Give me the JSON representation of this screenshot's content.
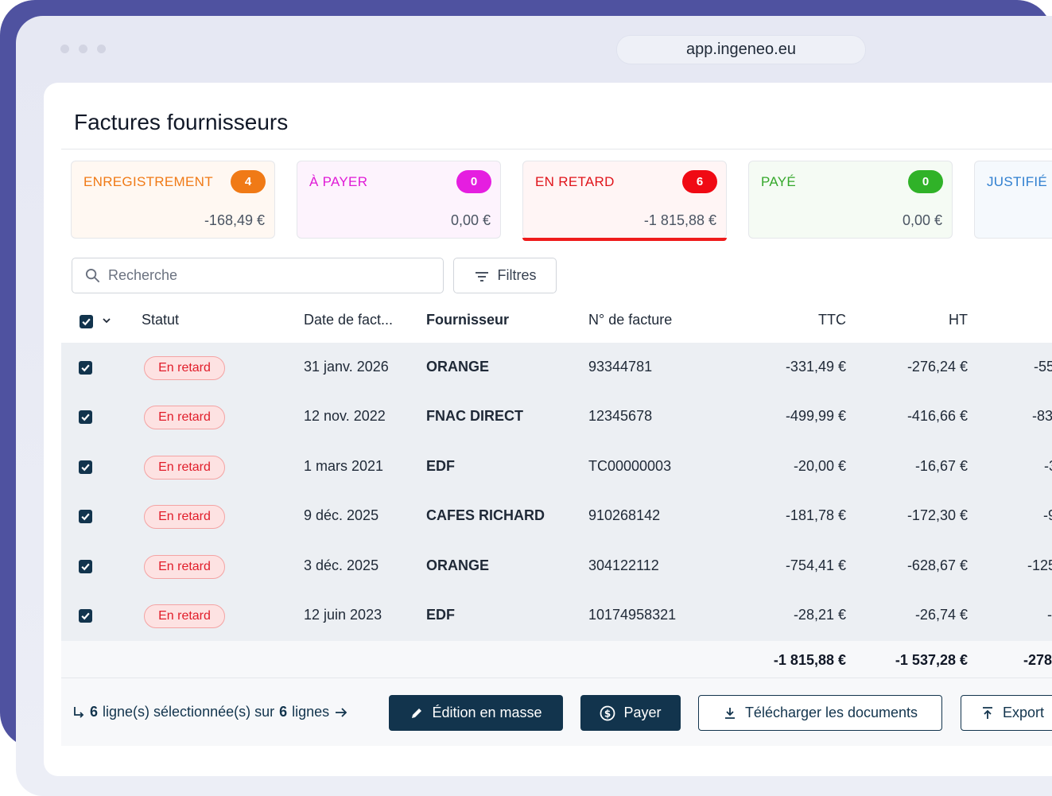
{
  "browser": {
    "url": "app.ingeneo.eu"
  },
  "page": {
    "title": "Factures fournisseurs"
  },
  "status_cards": [
    {
      "label": "ENREGISTREMENT",
      "count": "4",
      "amount": "-168,49 €",
      "color": "#f07a16",
      "badge_color": "#f07a16",
      "bg": "#fff8f2"
    },
    {
      "label": "À PAYER",
      "count": "0",
      "amount": "0,00 €",
      "color": "#e01bd6",
      "badge_color": "#e51ee0",
      "bg": "#fdf3fd"
    },
    {
      "label": "EN RETARD",
      "count": "6",
      "amount": "-1 815,88 €",
      "color": "#e0141b",
      "badge_color": "#f00a14",
      "bg": "#fff5f5"
    },
    {
      "label": "PAYÉ",
      "count": "0",
      "amount": "0,00 €",
      "color": "#35a82b",
      "badge_color": "#30b228",
      "bg": "#f5fbf4"
    },
    {
      "label": "JUSTIFIÉ",
      "count": "",
      "amount": "",
      "color": "#2f7fd0",
      "badge_color": "#2f7fd0",
      "bg": "#f5f9fd"
    }
  ],
  "search": {
    "placeholder": "Recherche"
  },
  "filters": {
    "label": "Filtres"
  },
  "table": {
    "headers": {
      "status": "Statut",
      "date": "Date de fact...",
      "supplier": "Fournisseur",
      "invoice_no": "N° de facture",
      "ttc": "TTC",
      "ht": "HT"
    },
    "rows": [
      {
        "status": "En retard",
        "date": "31 janv. 2026",
        "supplier": "ORANGE",
        "invoice_no": "93344781",
        "ttc": "-331,49 €",
        "ht": "-276,24 €",
        "extra": "-55"
      },
      {
        "status": "En retard",
        "date": "12 nov. 2022",
        "supplier": "FNAC DIRECT",
        "invoice_no": "12345678",
        "ttc": "-499,99 €",
        "ht": "-416,66 €",
        "extra": "-83"
      },
      {
        "status": "En retard",
        "date": "1 mars 2021",
        "supplier": "EDF",
        "invoice_no": "TC00000003",
        "ttc": "-20,00 €",
        "ht": "-16,67 €",
        "extra": "-3"
      },
      {
        "status": "En retard",
        "date": "9 déc. 2025",
        "supplier": "CAFES RICHARD",
        "invoice_no": "910268142",
        "ttc": "-181,78 €",
        "ht": "-172,30 €",
        "extra": "-9"
      },
      {
        "status": "En retard",
        "date": "3 déc. 2025",
        "supplier": "ORANGE",
        "invoice_no": "304122112",
        "ttc": "-754,41 €",
        "ht": "-628,67 €",
        "extra": "-125"
      },
      {
        "status": "En retard",
        "date": "12 juin 2023",
        "supplier": "EDF",
        "invoice_no": "10174958321",
        "ttc": "-28,21 €",
        "ht": "-26,74 €",
        "extra": "-"
      }
    ],
    "totals": {
      "ttc": "-1 815,88 €",
      "ht": "-1 537,28 €",
      "extra": "-278"
    }
  },
  "footer": {
    "selected_count": "6",
    "selected_text": "ligne(s) sélectionnée(s) sur",
    "total_count": "6",
    "total_text": "lignes",
    "buttons": {
      "bulk_edit": "Édition en masse",
      "pay": "Payer",
      "download": "Télécharger les documents",
      "export": "Export"
    }
  },
  "colors": {
    "primary": "#12344d",
    "late": "#e11d2a",
    "brand_bg": "#4f52a0"
  }
}
